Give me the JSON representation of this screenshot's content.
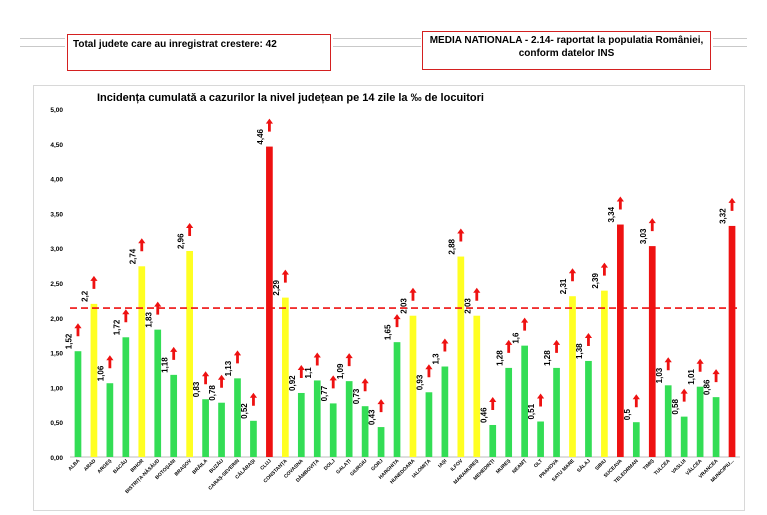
{
  "header": {
    "left_box": "Total judete care au inregistrat crestere: 42",
    "right_box_line1": "MEDIA NATIONALA - 2.14-  raportat la populatia României,",
    "right_box_line2": "conform datelor INS"
  },
  "colors": {
    "green": "#33dd55",
    "yellow": "#ffff22",
    "red": "#ee1111",
    "arrow": "#ee1111",
    "mean_line": "#ee1111"
  },
  "chart_data": {
    "type": "bar",
    "title": "Incidența cumulată a cazurilor la nivel județean pe 14 zile la ‰ de locuitori",
    "xlabel": "",
    "ylabel": "",
    "ylim": [
      0,
      5
    ],
    "yticks": [
      "0,00",
      "0,50",
      "1,00",
      "1,50",
      "2,00",
      "2,50",
      "3,00",
      "3,50",
      "4,00",
      "4,50",
      "5,00"
    ],
    "reference_line": {
      "value": 2.14,
      "style": "dashed"
    },
    "categories": [
      "ALBA",
      "ARAD",
      "ARGEȘ",
      "BACĂU",
      "BIHOR",
      "BISTRIȚA-NĂSĂUD",
      "BOTOȘANI",
      "BRAȘOV",
      "BRĂILA",
      "BUZĂU",
      "CARAȘ-SEVERIN",
      "CĂLĂRAȘI",
      "CLUJ",
      "CONSTANȚA",
      "COVASNA",
      "DÂMBOVIȚA",
      "DOLJ",
      "GALAȚI",
      "GIURGIU",
      "GORJ",
      "HARGHITA",
      "HUNEDOARA",
      "IALOMIȚA",
      "IAȘI",
      "ILFOV",
      "MARAMUREȘ",
      "MEHEDINȚI",
      "MUREȘ",
      "NEAMȚ",
      "OLT",
      "PRAHOVA",
      "SATU MARE",
      "SĂLAJ",
      "SIBIU",
      "SUCEAVA",
      "TELEORMAN",
      "TIMIȘ",
      "TULCEA",
      "VASLUI",
      "VÂLCEA",
      "VRANCEA",
      "MUNICIPIUL BUCUREȘTI"
    ],
    "tick_labels": [
      "ALBA",
      "ARAD",
      "ARGEȘ",
      "BACĂU",
      "BIHOR",
      "BISTRIȚA-NĂSĂUD",
      "BOTOȘANI",
      "BRAȘOV",
      "BRĂILA",
      "BUZĂU",
      "CARAȘ-SEVERIN",
      "CĂLĂRAȘI",
      "CLUJ",
      "CONSTANȚA",
      "COVASNA",
      "DÂMBOVIȚA",
      "DOLJ",
      "GALAȚI",
      "GIURGIU",
      "GORJ",
      "HARGHITA",
      "HUNEDOARA",
      "IALOMIȚA",
      "IAȘI",
      "ILFOV",
      "MARAMUREȘ",
      "MEHEDINȚI",
      "MUREȘ",
      "NEAMȚ",
      "OLT",
      "PRAHOVA",
      "SATU MARE",
      "SĂLAJ",
      "SIBIU",
      "SUCEAVA",
      "TELEORMAN",
      "TIMIȘ",
      "TULCEA",
      "VASLUI",
      "VÂLCEA",
      "VRANCEA",
      "MUNICIPIU..."
    ],
    "values": [
      1.52,
      2.2,
      1.06,
      1.72,
      2.74,
      1.83,
      1.18,
      2.96,
      0.83,
      0.78,
      1.13,
      0.52,
      4.46,
      2.29,
      0.92,
      1.1,
      0.77,
      1.09,
      0.73,
      0.43,
      1.65,
      2.03,
      0.93,
      1.3,
      2.88,
      2.03,
      0.46,
      1.28,
      1.6,
      0.51,
      1.28,
      2.31,
      1.38,
      2.39,
      3.34,
      0.5,
      3.03,
      1.03,
      0.58,
      1.01,
      0.86,
      3.32
    ],
    "value_labels": [
      "1,52",
      "2,2",
      "1,06",
      "1,72",
      "2,74",
      "1,83",
      "1,18",
      "2,96",
      "0,83",
      "0,78",
      "1,13",
      "0,52",
      "4,46",
      "2,29",
      "0,92",
      "1,1",
      "0,77",
      "1,09",
      "0,73",
      "0,43",
      "1,65",
      "2,03",
      "0,93",
      "1,3",
      "2,88",
      "2,03",
      "0,46",
      "1,28",
      "1,6",
      "0,51",
      "1,28",
      "2,31",
      "1,38",
      "2,39",
      "3,34",
      "0,5",
      "3,03",
      "1,03",
      "0,58",
      "1,01",
      "0,86",
      "3,32"
    ],
    "bar_colors": [
      "green",
      "yellow",
      "green",
      "green",
      "yellow",
      "green",
      "green",
      "yellow",
      "green",
      "green",
      "green",
      "green",
      "red",
      "yellow",
      "green",
      "green",
      "green",
      "green",
      "green",
      "green",
      "green",
      "yellow",
      "green",
      "green",
      "yellow",
      "yellow",
      "green",
      "green",
      "green",
      "green",
      "green",
      "yellow",
      "green",
      "yellow",
      "red",
      "green",
      "red",
      "green",
      "green",
      "green",
      "green",
      "red"
    ],
    "trend_arrows": [
      "up",
      "up",
      "up",
      "up",
      "up",
      "up",
      "up",
      "up",
      "up",
      "up",
      "up",
      "up",
      "up",
      "up",
      "up",
      "up",
      "up",
      "up",
      "up",
      "up",
      "up",
      "up",
      "up",
      "up",
      "up",
      "up",
      "up",
      "up",
      "up",
      "up",
      "up",
      "up",
      "up",
      "up",
      "up",
      "up",
      "up",
      "up",
      "up",
      "up",
      "up",
      "up"
    ]
  }
}
